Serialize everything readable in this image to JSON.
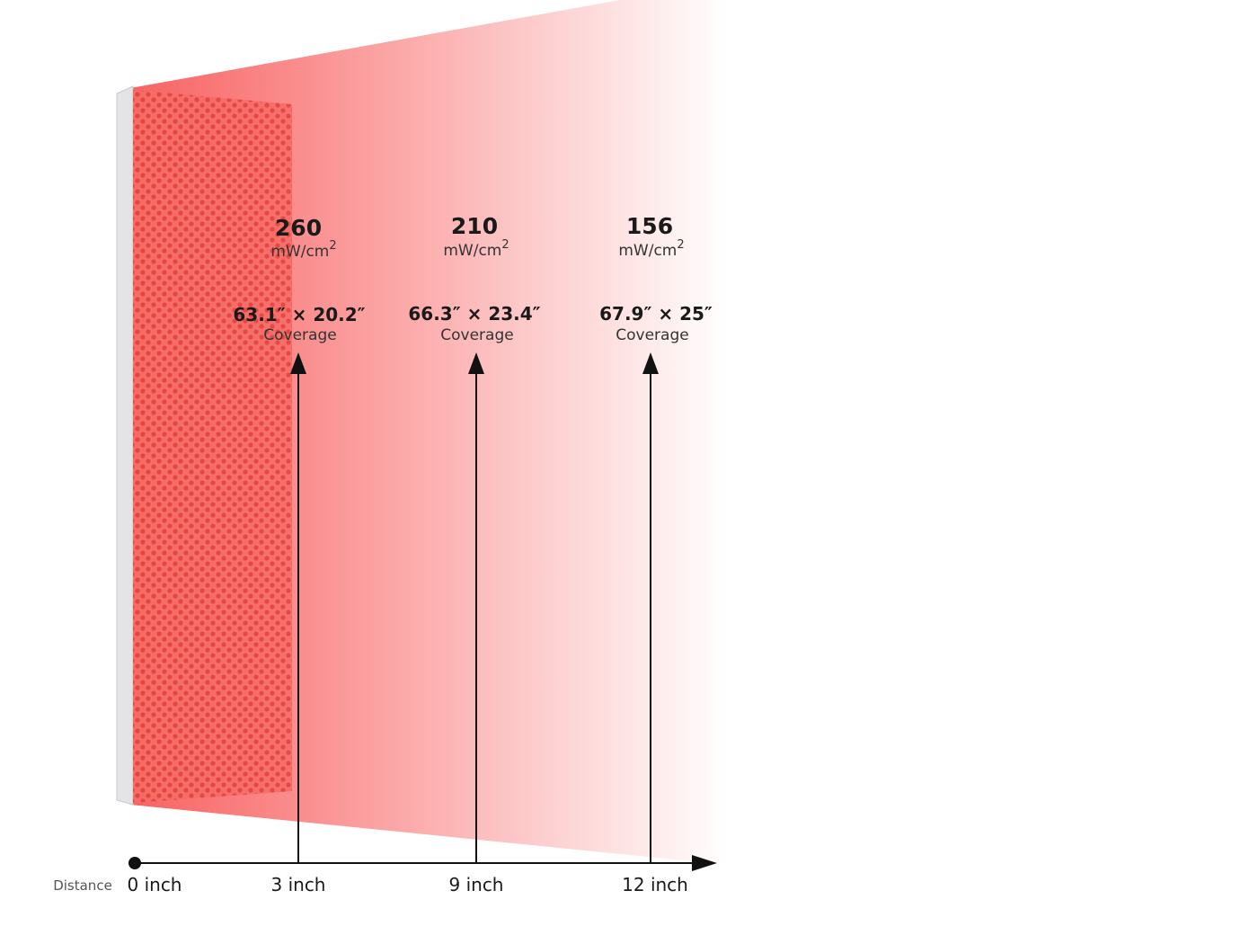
{
  "axis": {
    "label": "Distance",
    "origin": "0 inch"
  },
  "measurements": [
    {
      "irradiance": 260,
      "unit": "mW/cm",
      "unit_power": "2",
      "coverage": "63.1″ × 20.2″",
      "coverage_label": "Coverage",
      "distance": "3 inch"
    },
    {
      "irradiance": 210,
      "unit": "mW/cm",
      "unit_power": "2",
      "coverage": "66.3″ × 23.4″",
      "coverage_label": "Coverage",
      "distance": "9 inch"
    },
    {
      "irradiance": 156,
      "unit": "mW/cm",
      "unit_power": "2",
      "coverage": "67.9″ × 25″",
      "coverage_label": "Coverage",
      "distance": "12 inch"
    }
  ]
}
